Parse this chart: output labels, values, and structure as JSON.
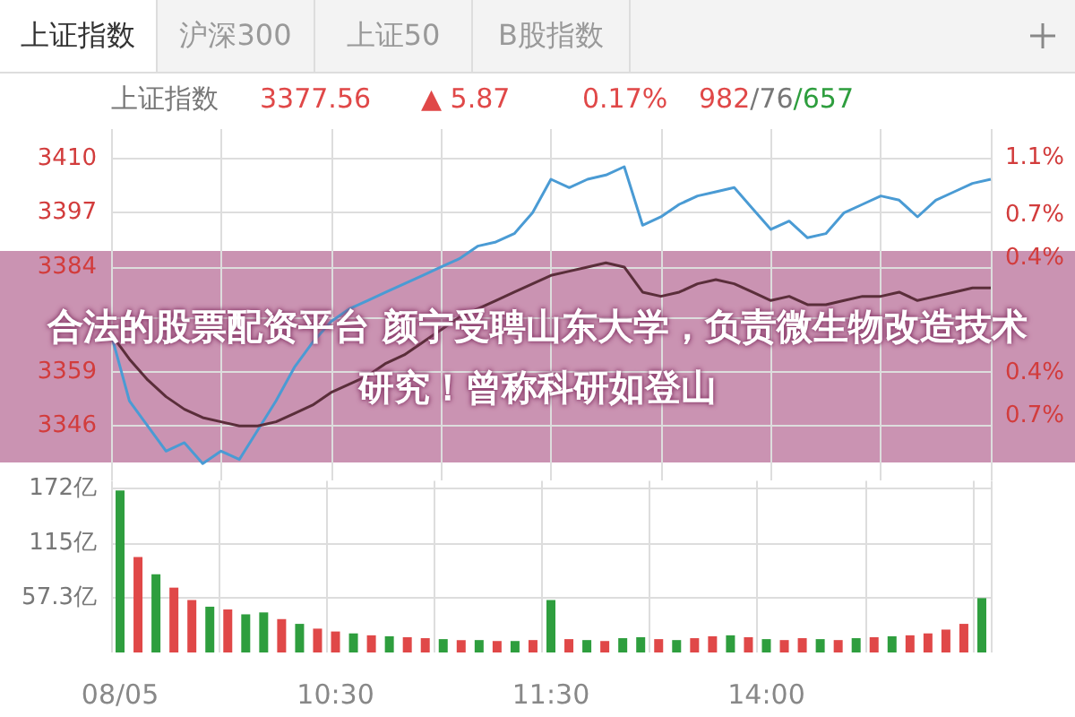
{
  "chart_data": [
    {
      "type": "line",
      "categories": [
        null,
        null,
        null,
        null,
        null,
        null,
        null,
        null,
        null,
        null,
        null,
        null,
        null,
        null,
        null,
        null,
        null,
        null,
        null,
        null,
        null,
        null,
        null,
        null,
        null,
        null,
        null,
        null,
        null,
        null,
        null,
        null,
        null,
        null,
        null,
        null,
        null,
        null,
        null,
        null,
        null,
        null,
        null,
        null,
        null,
        null,
        null,
        null,
        null
      ],
      "series": [
        {
          "color": "#4a9bd4",
          "values": [
            3368,
            3352,
            3346,
            3340,
            3342,
            3337,
            3340,
            3338,
            3345,
            3352,
            3360,
            3366,
            3371,
            3374,
            3376,
            3378,
            3380,
            3382,
            3384,
            3386,
            3389,
            3390,
            3392,
            3397,
            3405,
            3403,
            3405,
            3406,
            3408,
            3394,
            3396,
            3399,
            3401,
            3402,
            3403,
            3398,
            3393,
            3395,
            3391,
            3392,
            3397,
            3399,
            3401,
            3400,
            3396,
            3400,
            3402,
            3404,
            3405
          ]
        },
        {
          "color": "#5a2e3a",
          "values": [
            3368,
            3362,
            3357,
            3353,
            3350,
            3348,
            3347,
            3346,
            3346,
            3347,
            3349,
            3351,
            3354,
            3356,
            3358,
            3361,
            3363,
            3366,
            3369,
            3372,
            3374,
            3376,
            3378,
            3380,
            3382,
            3383,
            3384,
            3385,
            3384,
            3378,
            3377,
            3378,
            3380,
            3381,
            3380,
            3378,
            3376,
            3377,
            3375,
            3375,
            3376,
            3377,
            3377,
            3378,
            3376,
            3377,
            3378,
            3379,
            3379
          ]
        }
      ],
      "ylim": [
        3332.99,
        3417
      ],
      "yticks": [
        3410,
        3397,
        3384,
        {
          "value": 3371.69,
          "label": null
        },
        3359,
        3346
      ],
      "y2lim": [
        -1.15,
        1.3
      ],
      "y2ticks": [
        {
          "value": 1.1,
          "label": "1.1%"
        },
        {
          "value": 0.7,
          "label": "0.7%"
        },
        {
          "value": 0.4,
          "label": "0.4%"
        },
        {
          "value": -0.4,
          "label": "0.4%"
        },
        {
          "value": -0.7,
          "label": "0.7%"
        }
      ],
      "grid": true,
      "marker": "none",
      "tick_labels": "y",
      "annotations": [
        "上证指数",
        "沪深300",
        "上证50",
        "B股指数",
        "上证指数",
        "3377.56",
        "▲ 5.87",
        "0.17%",
        "982/76/657",
        "合法的股票配资平台 颜宁受聘山东大学，负责微生物改造技术研究！曾称科研如登山"
      ]
    },
    {
      "type": "bar",
      "categories": [
        "08/05",
        null,
        null,
        null,
        null,
        null,
        null,
        null,
        null,
        null,
        null,
        null,
        "10:30",
        null,
        null,
        null,
        null,
        null,
        null,
        null,
        null,
        null,
        null,
        null,
        "11:30",
        null,
        null,
        null,
        null,
        null,
        null,
        null,
        null,
        null,
        null,
        null,
        "14:00",
        null,
        null,
        null,
        null,
        null,
        null,
        null,
        null,
        null,
        null,
        null,
        null
      ],
      "values": [
        170,
        100,
        82,
        68,
        55,
        48,
        45,
        40,
        42,
        35,
        30,
        25,
        22,
        20,
        18,
        17,
        16,
        15,
        14,
        13,
        13,
        12,
        12,
        13,
        55,
        14,
        13,
        12,
        15,
        16,
        14,
        13,
        15,
        17,
        18,
        16,
        14,
        13,
        15,
        14,
        13,
        15,
        16,
        17,
        18,
        20,
        24,
        30,
        57
      ],
      "colors": [
        "#2e9e3e",
        "#e04848",
        "#2e9e3e",
        "#e04848",
        "#e04848",
        "#2e9e3e",
        "#e04848",
        "#2e9e3e",
        "#2e9e3e",
        "#e04848",
        "#2e9e3e",
        "#e04848",
        "#e04848",
        "#2e9e3e",
        "#e04848",
        "#2e9e3e",
        "#e04848",
        "#e04848",
        "#2e9e3e",
        "#e04848",
        "#2e9e3e",
        "#e04848",
        "#2e9e3e",
        "#e04848",
        "#2e9e3e",
        "#e04848",
        "#2e9e3e",
        "#e04848",
        "#2e9e3e",
        "#2e9e3e",
        "#e04848",
        "#2e9e3e",
        "#e04848",
        "#e04848",
        "#2e9e3e",
        "#e04848",
        "#2e9e3e",
        "#e04848",
        "#e04848",
        "#2e9e3e",
        "#e04848",
        "#2e9e3e",
        "#e04848",
        "#2e9e3e",
        "#e04848",
        "#e04848",
        "#e04848",
        "#e04848",
        "#2e9e3e"
      ],
      "ylim": [
        0,
        180
      ],
      "yticks": [
        {
          "value": 57.3,
          "label": "57.3亿"
        },
        {
          "value": 115,
          "label": "115亿"
        },
        {
          "value": 172,
          "label": "172亿"
        }
      ],
      "grid": true
    }
  ]
}
